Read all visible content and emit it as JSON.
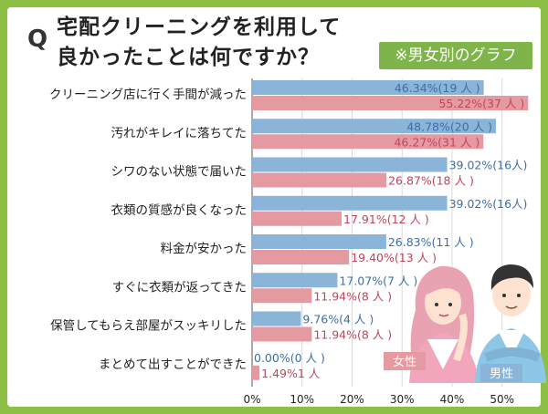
{
  "header": {
    "q_mark": "Q",
    "title": "宅配クリーニングを利用して\n良かったことは何ですか？",
    "badge": "※男女別のグラフ"
  },
  "legend": {
    "female": "女性",
    "male": "男性"
  },
  "colors": {
    "male": "#8ab4d8",
    "female": "#e59aa2",
    "male_text": "#3a6fa8",
    "female_text": "#c0455a",
    "frame": "#8dbf45"
  },
  "chart_data": {
    "type": "bar",
    "orientation": "horizontal",
    "categories": [
      "クリーニング店に行く手間が減った",
      "汚れがキレイに落ちてた",
      "シワのない状態で届いた",
      "衣類の質感が良くなった",
      "料金が安かった",
      "すぐに衣類が返ってきた",
      "保管してもらえ部屋がスッキリした",
      "まとめて出すことができた"
    ],
    "series": [
      {
        "name": "男性",
        "values": [
          46.34,
          48.78,
          39.02,
          39.02,
          26.83,
          17.07,
          9.76,
          0.0
        ],
        "labels": [
          "46.34%(19 人 )",
          "48.78%(20 人 )",
          "39.02%(16人)",
          "39.02%(16人)",
          "26.83%(11 人 )",
          "17.07%(7 人 )",
          "9.76%(4 人 )",
          "0.00%(0 人 )"
        ]
      },
      {
        "name": "女性",
        "values": [
          55.22,
          46.27,
          26.87,
          17.91,
          19.4,
          11.94,
          11.94,
          1.49
        ],
        "labels": [
          "55.22%(37 人 )",
          "46.27%(31 人 )",
          "26.87%(18 人 )",
          "17.91%(12 人 )",
          "19.40%(13 人 )",
          "11.94%(8 人 )",
          "11.94%(8 人 )",
          "1.49%1 人"
        ]
      }
    ],
    "xlim": [
      0,
      57
    ],
    "xticks": [
      "0%",
      "10%",
      "20%",
      "30%",
      "40%",
      "50%"
    ],
    "xtick_values": [
      0,
      10,
      20,
      30,
      40,
      50
    ],
    "grid": true
  }
}
